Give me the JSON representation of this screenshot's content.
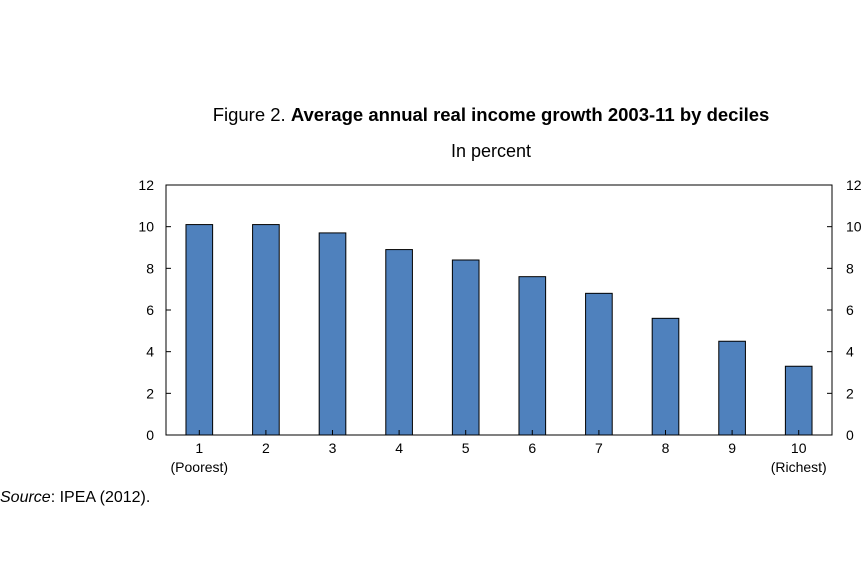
{
  "figure": {
    "label": "Figure 2.",
    "title": "Average annual real income growth 2003-11 by deciles",
    "subtitle": "In percent"
  },
  "source": {
    "label": "Source",
    "text": ": IPEA (2012)."
  },
  "colors": {
    "bar": "#4f81bd",
    "bar_stroke": "#000000",
    "axis": "#000000"
  },
  "chart_data": {
    "type": "bar",
    "title": "Average annual real income growth 2003-11 by deciles",
    "subtitle": "In percent",
    "categories": [
      "1",
      "2",
      "3",
      "4",
      "5",
      "6",
      "7",
      "8",
      "9",
      "10"
    ],
    "category_sublabels": [
      "(Poorest)",
      "",
      "",
      "",
      "",
      "",
      "",
      "",
      "",
      "(Richest)"
    ],
    "values": [
      10.1,
      10.1,
      9.7,
      8.9,
      8.4,
      7.6,
      6.8,
      5.6,
      4.5,
      3.3
    ],
    "ylim": [
      0,
      12
    ],
    "yticks": [
      0,
      2,
      4,
      6,
      8,
      10,
      12
    ],
    "y_axis_sides": [
      "left",
      "right"
    ],
    "grid": false,
    "legend": "none"
  }
}
